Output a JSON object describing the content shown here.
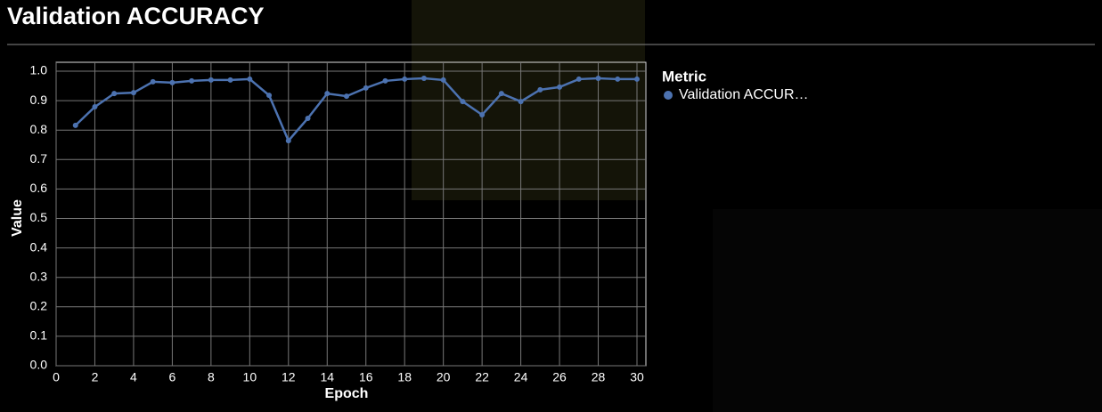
{
  "chart_data": {
    "type": "line",
    "title": "Validation ACCURACY",
    "x_label": "Epoch",
    "y_label": "Value",
    "legend_title": "Metric",
    "x": [
      1,
      2,
      3,
      4,
      5,
      6,
      7,
      8,
      9,
      10,
      11,
      12,
      13,
      14,
      15,
      16,
      17,
      18,
      19,
      20,
      21,
      22,
      23,
      24,
      25,
      26,
      27,
      28,
      29,
      30
    ],
    "series": [
      {
        "name": "Validation ACCUR…",
        "color": "#4c72b0",
        "values": [
          0.816,
          0.879,
          0.924,
          0.927,
          0.964,
          0.961,
          0.967,
          0.97,
          0.97,
          0.973,
          0.918,
          0.764,
          0.84,
          0.924,
          0.915,
          0.943,
          0.967,
          0.973,
          0.976,
          0.97,
          0.897,
          0.852,
          0.924,
          0.897,
          0.937,
          0.946,
          0.973,
          0.976,
          0.973,
          0.973
        ]
      }
    ],
    "xlim": [
      0,
      30
    ],
    "xticks": [
      0,
      2,
      4,
      6,
      8,
      10,
      12,
      14,
      16,
      18,
      20,
      22,
      24,
      26,
      28,
      30
    ],
    "ylim": [
      0,
      1
    ],
    "yticks": [
      {
        "value": 0,
        "label": "0.0"
      },
      0.1,
      0.2,
      0.3,
      0.4,
      0.5,
      0.6,
      0.7,
      0.8,
      0.9,
      {
        "value": 1,
        "label": "1.0"
      }
    ],
    "grid": true
  }
}
